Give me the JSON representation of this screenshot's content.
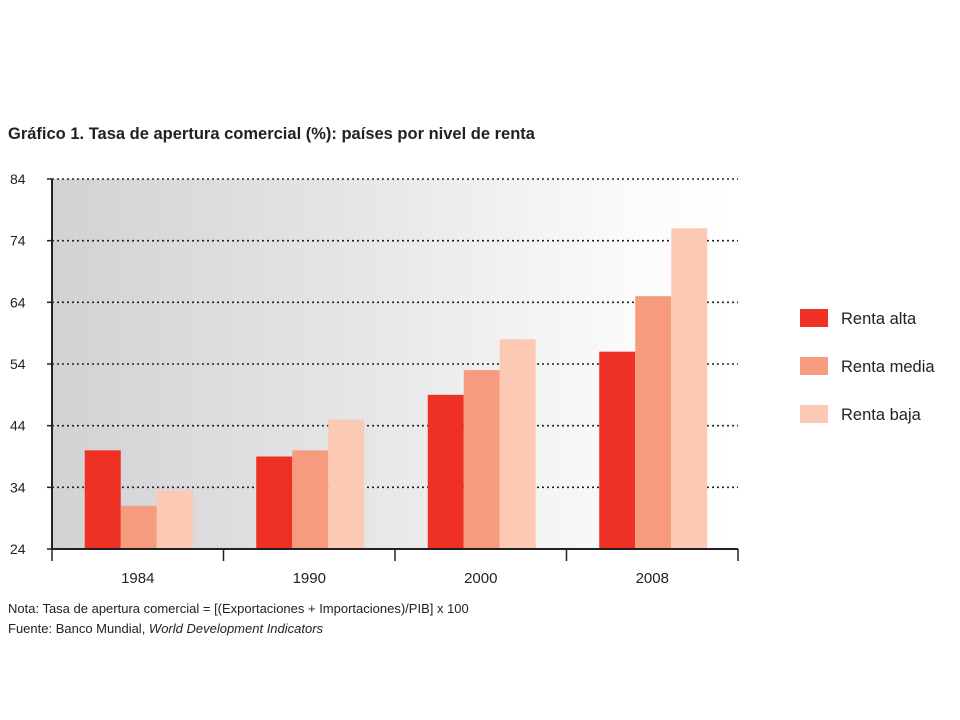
{
  "chart_data": {
    "type": "bar",
    "title": "Gráfico 1. Tasa de apertura comercial (%): países por nivel de renta",
    "categories": [
      "1984",
      "1990",
      "2000",
      "2008"
    ],
    "series": [
      {
        "name": "Renta alta",
        "color": "#ee3124",
        "values": [
          40,
          39,
          49,
          56
        ]
      },
      {
        "name": "Renta media",
        "color": "#f69b7d",
        "values": [
          31,
          40,
          53,
          65
        ]
      },
      {
        "name": "Renta baja",
        "color": "#fcc9b4",
        "values": [
          33.5,
          45,
          58,
          76
        ]
      }
    ],
    "ylim": [
      24,
      84
    ],
    "yticks": [
      "24",
      "34",
      "44",
      "54",
      "64",
      "74",
      "84"
    ],
    "xlabel": "",
    "ylabel": "",
    "grid": true,
    "legend_position": "right"
  },
  "notes": {
    "note": "Nota: Tasa de apertura comercial = [(Exportaciones + Importaciones)/PIB] x 100",
    "source_prefix": "Fuente: Banco Mundial, ",
    "source_italic": "World Development Indicators"
  }
}
